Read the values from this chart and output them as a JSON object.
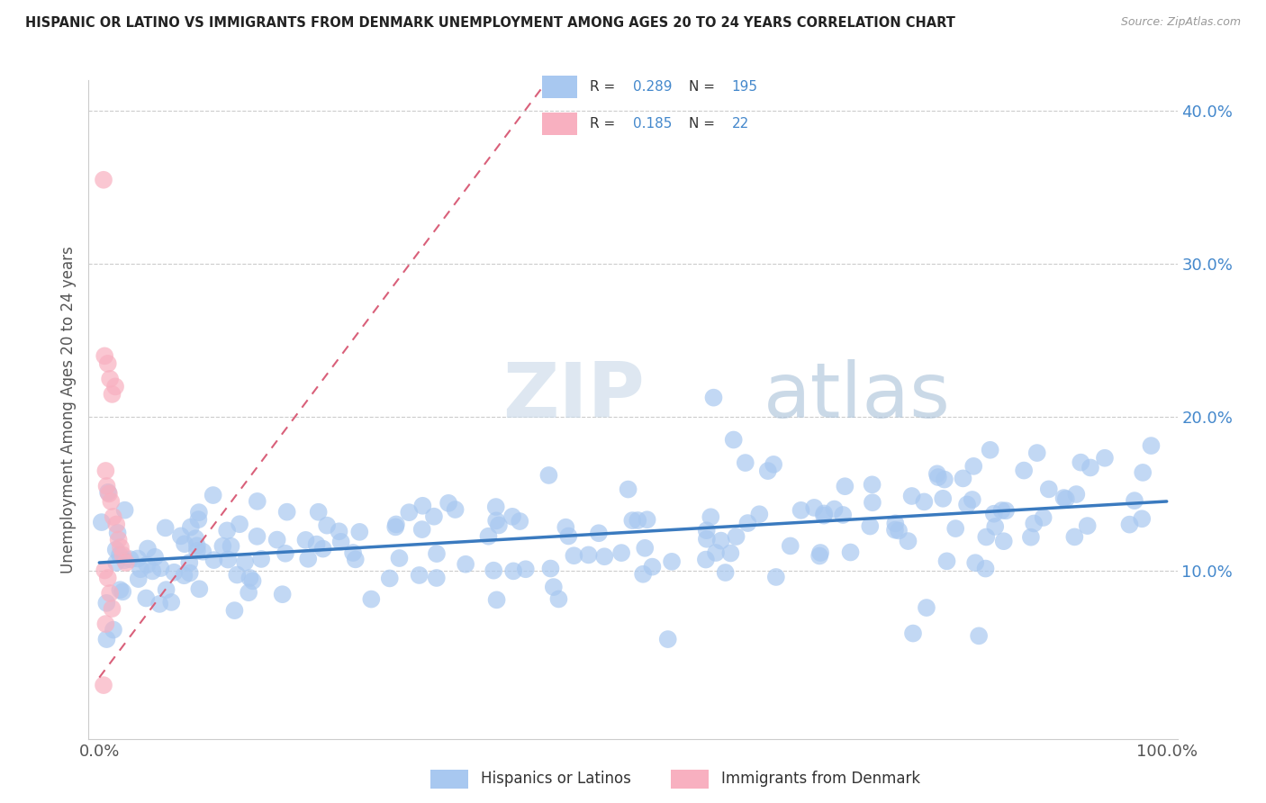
{
  "title": "HISPANIC OR LATINO VS IMMIGRANTS FROM DENMARK UNEMPLOYMENT AMONG AGES 20 TO 24 YEARS CORRELATION CHART",
  "source": "Source: ZipAtlas.com",
  "ylabel": "Unemployment Among Ages 20 to 24 years",
  "xlim": [
    0.0,
    1.0
  ],
  "ylim": [
    0.0,
    0.42
  ],
  "ytick_vals": [
    0.1,
    0.2,
    0.3,
    0.4
  ],
  "ytick_labels": [
    "10.0%",
    "20.0%",
    "30.0%",
    "40.0%"
  ],
  "xtick_vals": [
    0.0,
    1.0
  ],
  "xtick_labels": [
    "0.0%",
    "100.0%"
  ],
  "legend_labels": [
    "Hispanics or Latinos",
    "Immigrants from Denmark"
  ],
  "blue_color": "#a8c8f0",
  "pink_color": "#f8b0c0",
  "blue_line_color": "#3a7abf",
  "pink_line_color": "#d9607a",
  "pink_line_dash": true,
  "watermark_zip": "ZIP",
  "watermark_atlas": "atlas",
  "R_blue": 0.289,
  "N_blue": 195,
  "R_pink": 0.185,
  "N_pink": 22,
  "blue_trend_x0": 0.0,
  "blue_trend_y0": 0.105,
  "blue_trend_x1": 1.0,
  "blue_trend_y1": 0.145,
  "pink_trend_x0": 0.0,
  "pink_trend_y0": 0.03,
  "pink_trend_x1": 0.42,
  "pink_trend_y1": 0.42
}
